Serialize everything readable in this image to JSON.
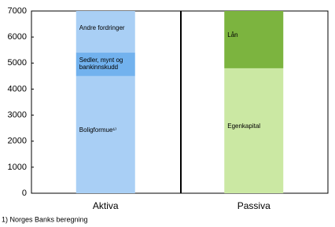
{
  "chart_data": {
    "type": "stacked-bar",
    "categories": [
      "Aktiva",
      "Passiva"
    ],
    "series": [
      {
        "name": "Boligformue¹⁾",
        "color": "#a9cff5",
        "values": [
          4500,
          null
        ]
      },
      {
        "name": "Sedler, mynt og bankinnskudd",
        "color": "#72b2ee",
        "values": [
          900,
          null
        ]
      },
      {
        "name": "Andre fordringer",
        "color": "#a9cff5",
        "values": [
          1600,
          null
        ]
      },
      {
        "name": "Egenkapital",
        "color": "#cbe8a3",
        "values": [
          null,
          4800
        ]
      },
      {
        "name": "Lån",
        "color": "#7cb43f",
        "values": [
          null,
          2200
        ]
      }
    ],
    "ylim": [
      0,
      7000
    ],
    "yticks": [
      0,
      1000,
      2000,
      3000,
      4000,
      5000,
      6000,
      7000
    ],
    "footnote": "1) Norges Banks beregning"
  }
}
